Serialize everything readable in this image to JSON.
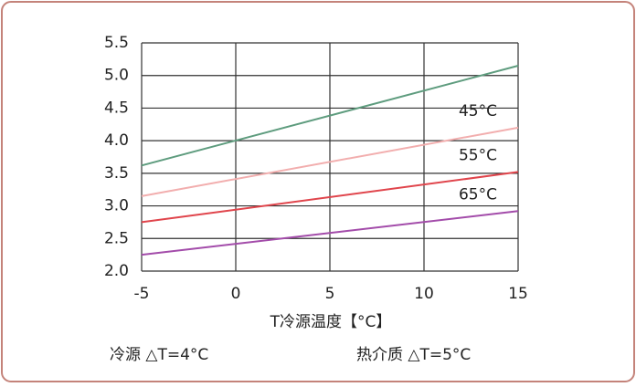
{
  "chart_data": {
    "type": "line",
    "x": [
      -5,
      15
    ],
    "xlabel": "T冷源温度【°C】",
    "xlim": [
      -5,
      15
    ],
    "xticks": [
      -5,
      0,
      5,
      10,
      15
    ],
    "ylim": [
      2,
      5.5
    ],
    "yticks": [
      {
        "value": 2,
        "label": "2.0"
      },
      2.5,
      {
        "value": 3,
        "label": "3.0"
      },
      3.5,
      {
        "value": 4,
        "label": "4.0"
      },
      4.5,
      {
        "value": 5,
        "label": "5.0"
      },
      5.5
    ],
    "grid": true,
    "series": [
      {
        "color": "#5e9c7e",
        "values": [
          3.62,
          5.15
        ]
      },
      {
        "name": "45°C",
        "color": "#f2aeae",
        "values": [
          3.15,
          4.2
        ]
      },
      {
        "name": "55°C",
        "color": "#e0454c",
        "values": [
          2.75,
          3.52
        ]
      },
      {
        "name": "65°C",
        "color": "#a34caa",
        "values": [
          2.25,
          2.92
        ]
      }
    ],
    "annotations": [
      "冷源 △T=4°C",
      "热介质 △T=5°C"
    ]
  }
}
